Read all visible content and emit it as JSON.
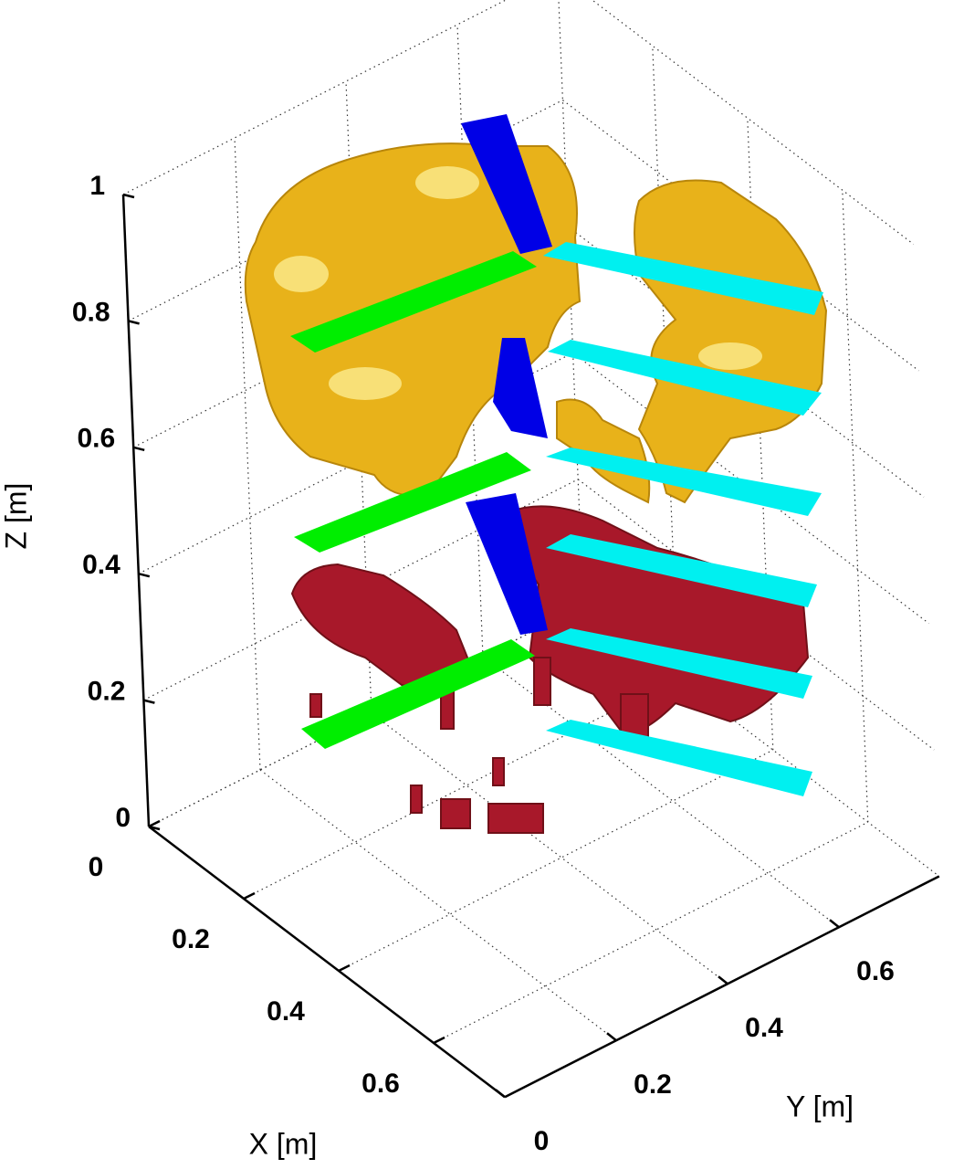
{
  "chart_data": {
    "type": "surface3d",
    "xlabel": "X [m]",
    "ylabel": "Y [m]",
    "zlabel": "Z [m]",
    "xlim": [
      0,
      0.75
    ],
    "ylim": [
      0,
      0.78
    ],
    "zlim": [
      0,
      1
    ],
    "xticks": [
      0,
      0.2,
      0.4,
      0.6
    ],
    "yticks": [
      0,
      0.2,
      0.4,
      0.6
    ],
    "zticks": [
      0,
      0.2,
      0.4,
      0.6,
      0.8,
      1
    ],
    "grid": true
  }
}
